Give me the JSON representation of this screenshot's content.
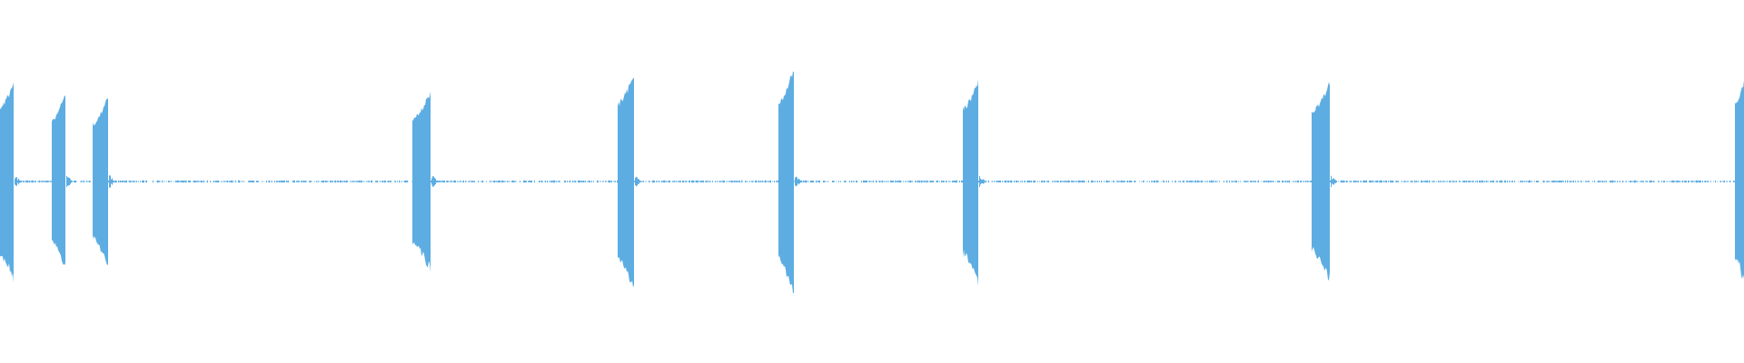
{
  "chart_data": {
    "type": "area",
    "title": "",
    "xlabel": "",
    "ylabel": "",
    "ylim": [
      -1,
      1
    ],
    "xlim": [
      0,
      1
    ],
    "grid": false,
    "axes_visible": false,
    "waveform_color": "#5dade2",
    "background_color": "#ffffff",
    "noise_floor_amplitude": 0.005,
    "bursts": [
      {
        "start": 0.0,
        "end": 0.0078,
        "start_amplitude": 0.42,
        "peak_amplitude": 0.56
      },
      {
        "start": 0.0297,
        "end": 0.0375,
        "start_amplitude": 0.35,
        "peak_amplitude": 0.5
      },
      {
        "start": 0.0536,
        "end": 0.0615,
        "start_amplitude": 0.33,
        "peak_amplitude": 0.48
      },
      {
        "start": 0.2365,
        "end": 0.2464,
        "start_amplitude": 0.36,
        "peak_amplitude": 0.5
      },
      {
        "start": 0.3542,
        "end": 0.3635,
        "start_amplitude": 0.44,
        "peak_amplitude": 0.61
      },
      {
        "start": 0.4464,
        "end": 0.4547,
        "start_amplitude": 0.45,
        "peak_amplitude": 0.63
      },
      {
        "start": 0.5526,
        "end": 0.5609,
        "start_amplitude": 0.42,
        "peak_amplitude": 0.57
      },
      {
        "start": 0.7526,
        "end": 0.762,
        "start_amplitude": 0.4,
        "peak_amplitude": 0.55
      },
      {
        "start": 0.9948,
        "end": 1.0,
        "start_amplitude": 0.44,
        "peak_amplitude": 0.56
      }
    ]
  }
}
